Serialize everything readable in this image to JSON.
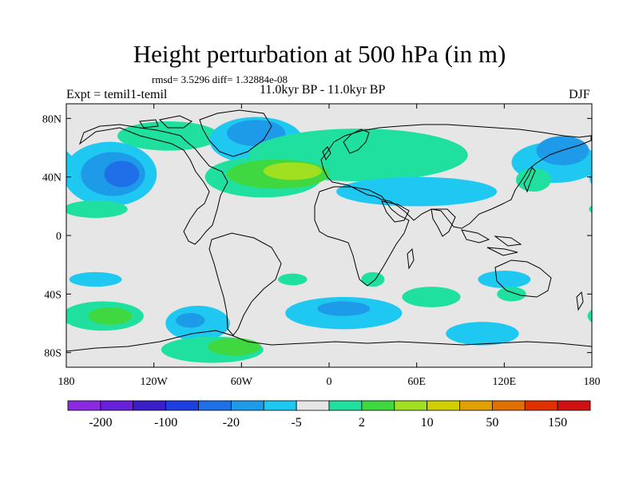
{
  "title": "Height perturbation at 500 hPa (in m)",
  "stats": "rmsd= 3.5296 diff= 1.32884e-08",
  "experiment": "Expt = temil1-temil",
  "period": "11.0kyr BP - 11.0kyr BP",
  "season": "DJF",
  "axes": {
    "y_ticks": [
      {
        "label": "80N",
        "lat": 80
      },
      {
        "label": "40N",
        "lat": 40
      },
      {
        "label": "0",
        "lat": 0
      },
      {
        "label": "40S",
        "lat": -40
      },
      {
        "label": "80S",
        "lat": -80
      }
    ],
    "x_ticks": [
      {
        "label": "180",
        "lon": -180
      },
      {
        "label": "120W",
        "lon": -120
      },
      {
        "label": "60W",
        "lon": -60
      },
      {
        "label": "0",
        "lon": 0
      },
      {
        "label": "60E",
        "lon": 60
      },
      {
        "label": "120E",
        "lon": 120
      },
      {
        "label": "180",
        "lon": 180
      }
    ],
    "lat_range": [
      -90,
      90
    ],
    "lon_range": [
      -180,
      180
    ]
  },
  "colorbar": {
    "colors": [
      "#8a2be2",
      "#6a1fd8",
      "#3b1ec8",
      "#1e3fe0",
      "#1e6fe8",
      "#1e9be8",
      "#1ec8f0",
      "#e6e6e6",
      "#20e0a0",
      "#40d840",
      "#a0e020",
      "#d0d000",
      "#e0a000",
      "#e07000",
      "#e03000",
      "#d01010"
    ],
    "labels": [
      {
        "text": "-200",
        "boundary": 1
      },
      {
        "text": "-100",
        "boundary": 3
      },
      {
        "text": "-20",
        "boundary": 5
      },
      {
        "text": "-5",
        "boundary": 7
      },
      {
        "text": "2",
        "boundary": 9
      },
      {
        "text": "10",
        "boundary": 11
      },
      {
        "text": "50",
        "boundary": 13
      },
      {
        "text": "150",
        "boundary": 15
      }
    ]
  },
  "field": {
    "background_color": "#e6e6e6",
    "anomalies": [
      {
        "lon": -150,
        "lat": 42,
        "rlon": 32,
        "rlat": 22,
        "color": "#1ec8f0"
      },
      {
        "lon": -148,
        "lat": 42,
        "rlon": 22,
        "rlat": 15,
        "color": "#1e9be8"
      },
      {
        "lon": -142,
        "lat": 42,
        "rlon": 12,
        "rlat": 9,
        "color": "#1e6fe8"
      },
      {
        "lon": -160,
        "lat": 18,
        "rlon": 22,
        "rlat": 6,
        "color": "#20e0a0"
      },
      {
        "lon": -110,
        "lat": 68,
        "rlon": 35,
        "rlat": 10,
        "color": "#20e0a0"
      },
      {
        "lon": -50,
        "lat": 65,
        "rlon": 32,
        "rlat": 16,
        "color": "#1ec8f0"
      },
      {
        "lon": -50,
        "lat": 70,
        "rlon": 20,
        "rlat": 9,
        "color": "#1e9be8"
      },
      {
        "lon": -45,
        "lat": 40,
        "rlon": 40,
        "rlat": 14,
        "color": "#20e0a0"
      },
      {
        "lon": 20,
        "lat": 55,
        "rlon": 75,
        "rlat": 18,
        "color": "#20e0a0"
      },
      {
        "lon": -35,
        "lat": 42,
        "rlon": 35,
        "rlat": 10,
        "color": "#40d840"
      },
      {
        "lon": -25,
        "lat": 44,
        "rlon": 20,
        "rlat": 6,
        "color": "#a0e020"
      },
      {
        "lon": 60,
        "lat": 30,
        "rlon": 55,
        "rlat": 10,
        "color": "#1ec8f0"
      },
      {
        "lon": 155,
        "lat": 50,
        "rlon": 30,
        "rlat": 14,
        "color": "#1ec8f0"
      },
      {
        "lon": 160,
        "lat": 58,
        "rlon": 18,
        "rlat": 10,
        "color": "#1e9be8"
      },
      {
        "lon": 140,
        "lat": 38,
        "rlon": 12,
        "rlat": 8,
        "color": "#20e0a0"
      },
      {
        "lon": -160,
        "lat": -30,
        "rlon": 18,
        "rlat": 5,
        "color": "#1ec8f0"
      },
      {
        "lon": -155,
        "lat": -55,
        "rlon": 28,
        "rlat": 10,
        "color": "#20e0a0"
      },
      {
        "lon": -150,
        "lat": -55,
        "rlon": 15,
        "rlat": 6,
        "color": "#40d840"
      },
      {
        "lon": -90,
        "lat": -60,
        "rlon": 22,
        "rlat": 12,
        "color": "#1ec8f0"
      },
      {
        "lon": -95,
        "lat": -58,
        "rlon": 10,
        "rlat": 5,
        "color": "#1e9be8"
      },
      {
        "lon": -80,
        "lat": -78,
        "rlon": 35,
        "rlat": 9,
        "color": "#20e0a0"
      },
      {
        "lon": -65,
        "lat": -76,
        "rlon": 18,
        "rlat": 6,
        "color": "#40d840"
      },
      {
        "lon": -25,
        "lat": -30,
        "rlon": 10,
        "rlat": 4,
        "color": "#20e0a0"
      },
      {
        "lon": 10,
        "lat": -53,
        "rlon": 40,
        "rlat": 11,
        "color": "#1ec8f0"
      },
      {
        "lon": 10,
        "lat": -50,
        "rlon": 18,
        "rlat": 5,
        "color": "#1e9be8"
      },
      {
        "lon": 30,
        "lat": -30,
        "rlon": 8,
        "rlat": 5,
        "color": "#20e0a0"
      },
      {
        "lon": 70,
        "lat": -42,
        "rlon": 20,
        "rlat": 7,
        "color": "#20e0a0"
      },
      {
        "lon": 120,
        "lat": -30,
        "rlon": 18,
        "rlat": 6,
        "color": "#1ec8f0"
      },
      {
        "lon": 125,
        "lat": -40,
        "rlon": 10,
        "rlat": 5,
        "color": "#20e0a0"
      },
      {
        "lon": 105,
        "lat": -67,
        "rlon": 25,
        "rlat": 8,
        "color": "#1ec8f0"
      }
    ]
  }
}
